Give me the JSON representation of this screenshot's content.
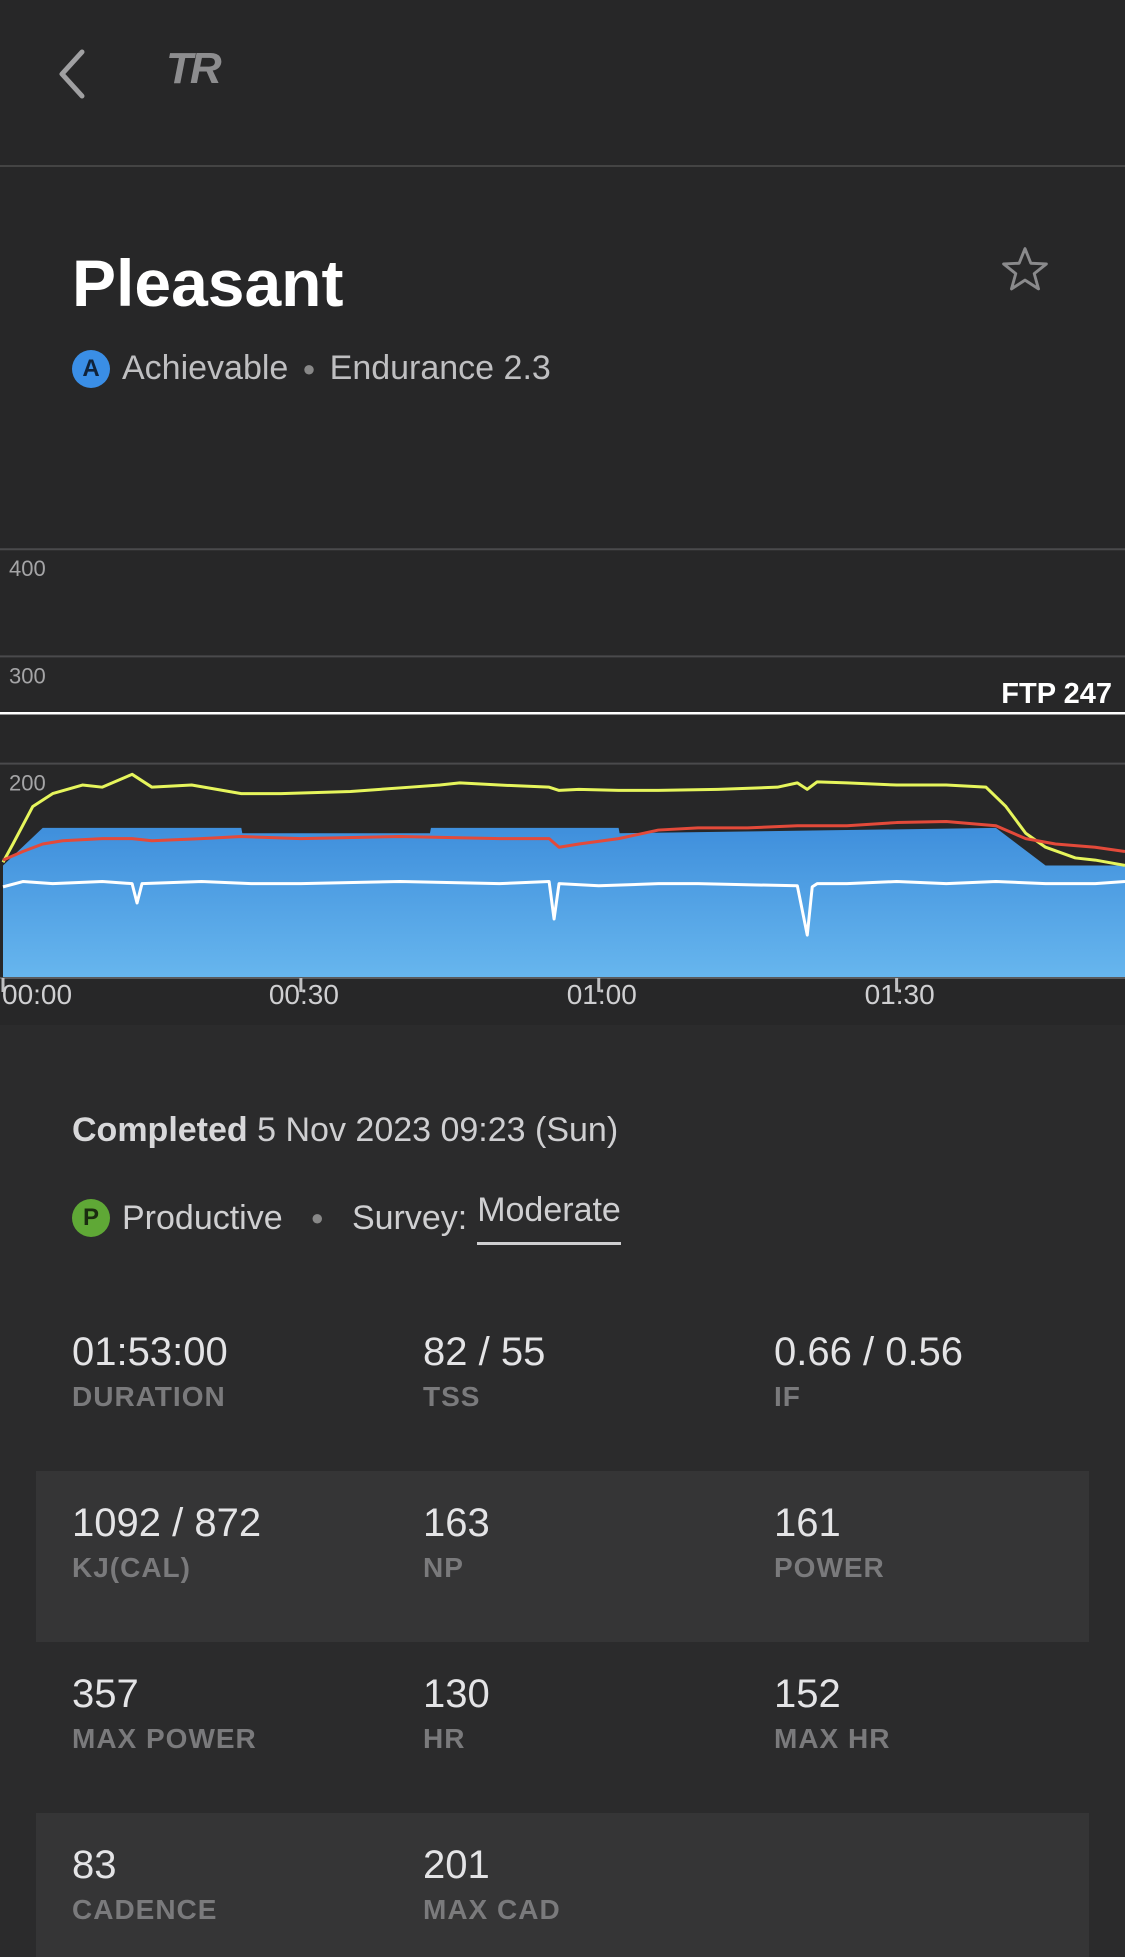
{
  "header": {
    "logo": "TR"
  },
  "workout": {
    "title": "Pleasant",
    "difficulty_badge": "A",
    "difficulty": "Achievable",
    "zone": "Endurance 2.3"
  },
  "chart_data": {
    "type": "area",
    "ftp_label": "FTP 247",
    "ftp": 247,
    "y_ticks": [
      "400",
      "300",
      "200"
    ],
    "x_ticks": [
      "00:00",
      "00:30",
      "01:00",
      "01:30"
    ],
    "ylim": [
      0,
      400
    ],
    "x_unit": "minutes",
    "xlim": [
      0,
      113
    ],
    "target_power": {
      "x": [
        0,
        4,
        6,
        24,
        24.1,
        43,
        43.1,
        62,
        62.1,
        100,
        105,
        113
      ],
      "y": [
        105,
        140,
        140,
        140,
        135,
        135,
        140,
        140,
        135,
        140,
        105,
        105
      ]
    },
    "series": [
      {
        "color": "#e6f55c",
        "x": [
          0,
          1,
          3,
          5,
          8,
          10,
          13,
          15,
          19,
          24,
          28,
          35,
          41,
          44,
          46,
          50,
          55,
          56,
          58,
          62,
          66,
          72,
          78,
          80,
          81,
          82,
          85,
          90,
          95,
          99,
          101,
          103,
          105,
          108,
          110,
          113
        ],
        "y": [
          108,
          125,
          160,
          172,
          180,
          178,
          190,
          178,
          180,
          172,
          172,
          174,
          178,
          180,
          182,
          180,
          178,
          175,
          176,
          175,
          175,
          176,
          178,
          182,
          176,
          183,
          182,
          180,
          180,
          178,
          160,
          135,
          122,
          112,
          110,
          105
        ]
      },
      {
        "color": "#e34a3a",
        "x": [
          0,
          2,
          4,
          6,
          10,
          13,
          15,
          20,
          24,
          30,
          40,
          50,
          55,
          56,
          58,
          62,
          66,
          70,
          75,
          80,
          85,
          90,
          95,
          100,
          103,
          106,
          110,
          113
        ],
        "y": [
          110,
          118,
          125,
          128,
          130,
          130,
          128,
          130,
          132,
          130,
          132,
          130,
          130,
          122,
          125,
          130,
          138,
          140,
          140,
          142,
          142,
          145,
          146,
          142,
          130,
          125,
          122,
          118
        ]
      },
      {
        "color": "#ffffff",
        "x": [
          0,
          2,
          5,
          10,
          13,
          13.5,
          14,
          20,
          25,
          30,
          40,
          50,
          55,
          55.5,
          56,
          60,
          66,
          70,
          80,
          81,
          81.5,
          82,
          85,
          90,
          95,
          100,
          105,
          110,
          113
        ],
        "y": [
          85,
          90,
          88,
          90,
          88,
          70,
          88,
          90,
          88,
          88,
          90,
          88,
          90,
          55,
          88,
          86,
          88,
          88,
          86,
          40,
          85,
          88,
          88,
          90,
          88,
          90,
          88,
          88,
          90
        ]
      }
    ]
  },
  "completed": {
    "label": "Completed",
    "value": "5 Nov 2023 09:23 (Sun)"
  },
  "status": {
    "badge": "P",
    "label": "Productive",
    "survey_label": "Survey:",
    "survey_value": "Moderate"
  },
  "stats": [
    [
      {
        "value": "01:53:00",
        "label": "DURATION"
      },
      {
        "value": "82 / 55",
        "label": "TSS"
      },
      {
        "value": "0.66 / 0.56",
        "label": "IF"
      }
    ],
    [
      {
        "value": "1092 / 872",
        "label": "KJ(CAL)"
      },
      {
        "value": "163",
        "label": "NP"
      },
      {
        "value": "161",
        "label": "POWER"
      }
    ],
    [
      {
        "value": "357",
        "label": "MAX POWER"
      },
      {
        "value": "130",
        "label": "HR"
      },
      {
        "value": "152",
        "label": "MAX HR"
      }
    ],
    [
      {
        "value": "83",
        "label": "CADENCE"
      },
      {
        "value": "201",
        "label": "MAX CAD"
      }
    ]
  ]
}
